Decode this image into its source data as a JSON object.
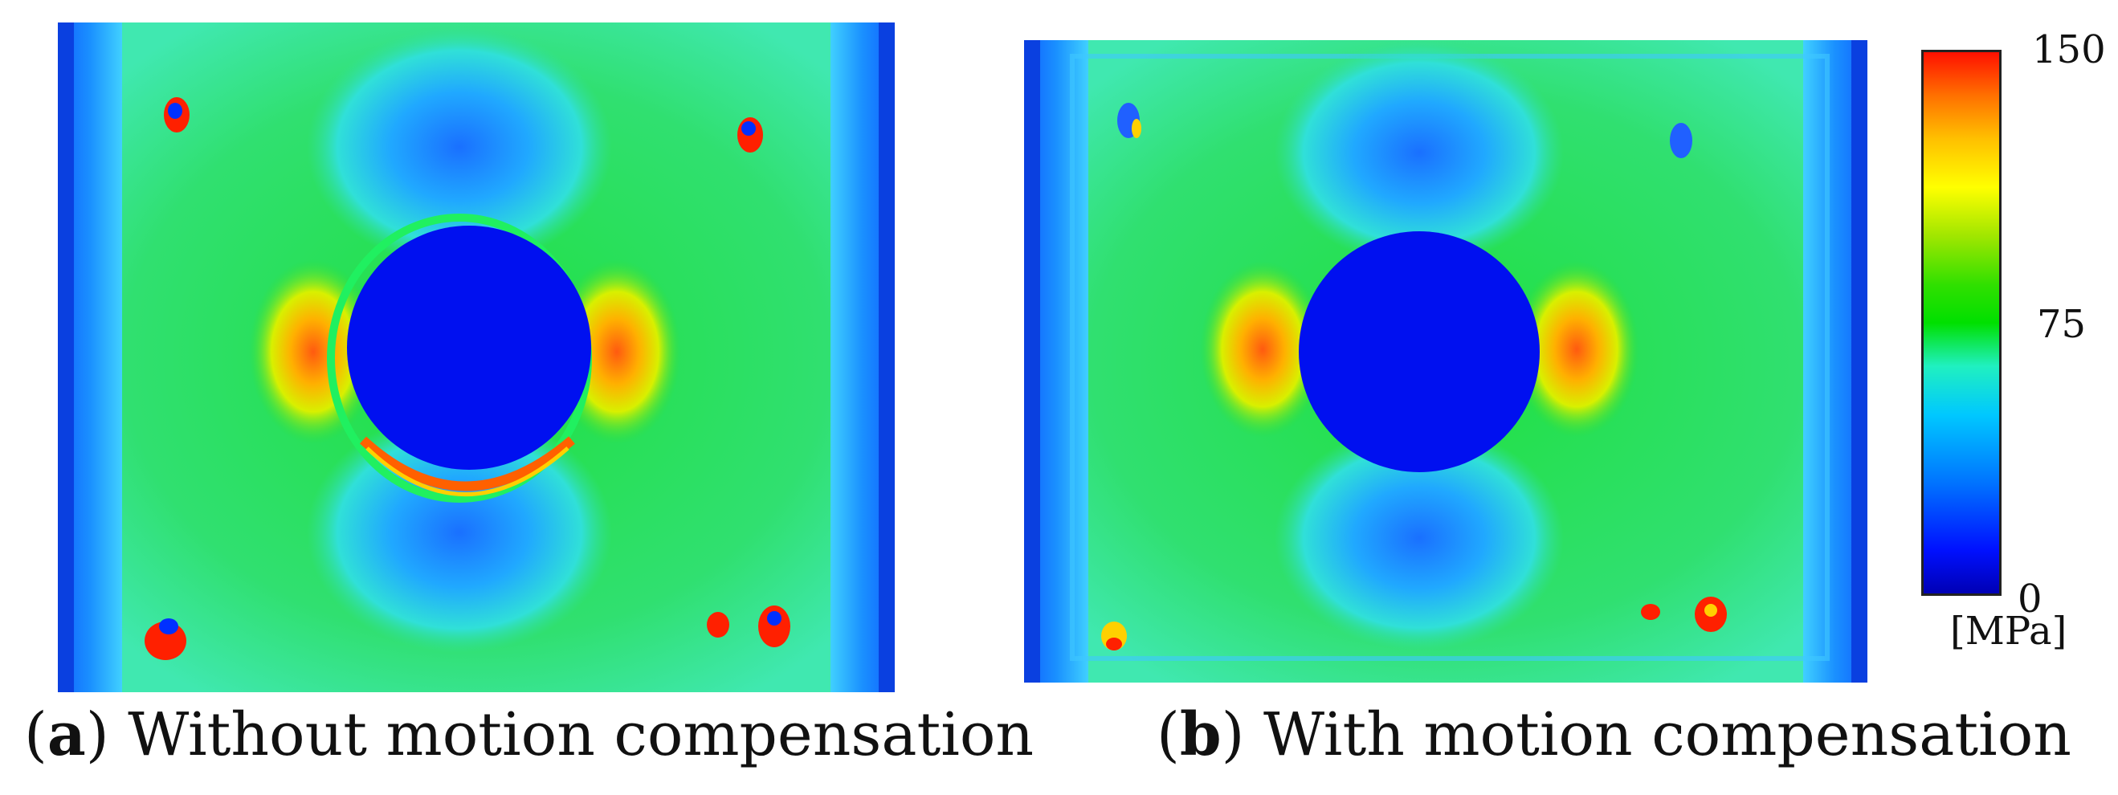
{
  "panels": [
    {
      "letter": "a",
      "caption": "Without motion compensation",
      "motion_compensated": false
    },
    {
      "letter": "b",
      "caption": "With motion compensation",
      "motion_compensated": true
    }
  ],
  "colorbar": {
    "max_label": "150",
    "mid_label": "75",
    "min_label": "0",
    "unit_label": "[MPa]",
    "colormap": "jet",
    "colors": {
      "low": "#0000b4",
      "low_mid": "#00c8ff",
      "mid": "#00e000",
      "high_mid": "#ffff00",
      "high": "#ff1000"
    }
  }
}
